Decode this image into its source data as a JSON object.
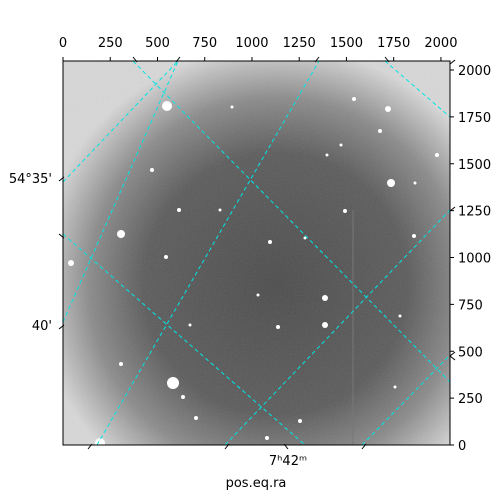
{
  "image": {
    "description_name": "astronomical-fits-image",
    "pixel_extent": {
      "x": [
        0,
        2048
      ],
      "y": [
        0,
        2048
      ]
    }
  },
  "axes": {
    "top_ticks": {
      "values": [
        0,
        250,
        500,
        750,
        1000,
        1250,
        1500,
        1750,
        2000
      ],
      "labels": [
        "0",
        "250",
        "500",
        "750",
        "1000",
        "1250",
        "1500",
        "1750",
        "2000"
      ]
    },
    "right_ticks": {
      "values": [
        0,
        250,
        500,
        750,
        1000,
        1250,
        1500,
        1750,
        2000
      ],
      "labels": [
        "0",
        "250",
        "500",
        "750",
        "1000",
        "1250",
        "1500",
        "1750",
        "2000"
      ]
    },
    "left_ticks": {
      "labels": [
        "54°35'",
        "40'"
      ]
    },
    "bottom_ticks": {
      "labels": [
        "7ʰ42ᵐ"
      ]
    },
    "bottom_title": "pos.eq.ra"
  },
  "grid": {
    "color": "#00e5e5",
    "style": "dashed"
  }
}
